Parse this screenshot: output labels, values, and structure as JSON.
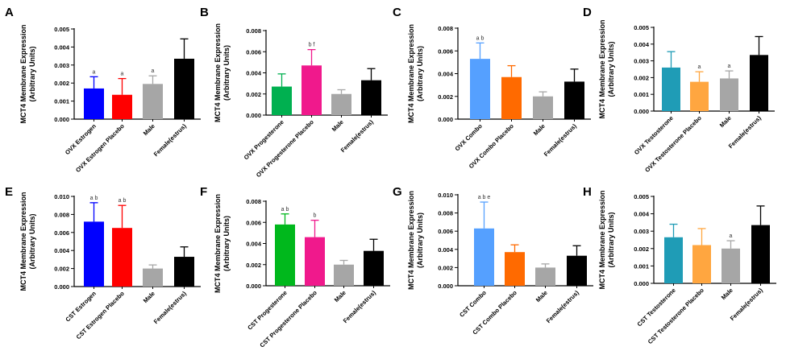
{
  "chart_data": [
    {
      "panel": "A",
      "type": "bar",
      "ylabel": [
        "MCT4 Membrane Expression",
        "(Arbitrary Units)"
      ],
      "ylim": [
        0,
        0.005
      ],
      "yticks": [
        "0.000",
        "0.001",
        "0.002",
        "0.003",
        "0.004",
        "0.005"
      ],
      "categories": [
        "OVX Estrogen",
        "OVX Estrogen Placebo",
        "Male",
        "Female(estrus)"
      ],
      "values": [
        0.0017,
        0.00135,
        0.00195,
        0.00335
      ],
      "errors": [
        0.00065,
        0.0009,
        0.00045,
        0.0011
      ],
      "annotations": [
        "a",
        "a",
        "a",
        ""
      ],
      "colors": [
        "#0000ff",
        "#ff0000",
        "#a6a6a6",
        "#000000"
      ]
    },
    {
      "panel": "B",
      "type": "bar",
      "ylabel": [
        "MCT4 Membrane Expression",
        "(Arbitrary Units)"
      ],
      "ylim": [
        0,
        0.008
      ],
      "yticks": [
        "0.000",
        "0.002",
        "0.004",
        "0.006",
        "0.008"
      ],
      "categories": [
        "OVX Progesterone",
        "OVX Progesterone Placebo",
        "Male",
        "Female(estrus)"
      ],
      "values": [
        0.0027,
        0.0047,
        0.002,
        0.0033
      ],
      "errors": [
        0.0012,
        0.0015,
        0.0004,
        0.0011
      ],
      "annotations": [
        "",
        "b f",
        "",
        ""
      ],
      "colors": [
        "#00b050",
        "#f0198c",
        "#a6a6a6",
        "#000000"
      ]
    },
    {
      "panel": "C",
      "type": "bar",
      "ylabel": [
        "MCT4 Membrane Expression",
        "(Arbitrary Units)"
      ],
      "ylim": [
        0,
        0.008
      ],
      "yticks": [
        "0.000",
        "0.002",
        "0.004",
        "0.006",
        "0.008"
      ],
      "categories": [
        "OVX Combo",
        "OVX Combo Placebo",
        "Male",
        "Female(estrus)"
      ],
      "values": [
        0.0053,
        0.0037,
        0.002,
        0.0033
      ],
      "errors": [
        0.0014,
        0.001,
        0.0004,
        0.0011
      ],
      "annotations": [
        "a b",
        "",
        "",
        ""
      ],
      "colors": [
        "#55a0ff",
        "#ff6a00",
        "#a6a6a6",
        "#000000"
      ]
    },
    {
      "panel": "D",
      "type": "bar",
      "ylabel": [
        "MCT4 Membrane Expression",
        "(Arbitrary Units)"
      ],
      "ylim": [
        0,
        0.005
      ],
      "yticks": [
        "0.000",
        "0.001",
        "0.002",
        "0.003",
        "0.004",
        "0.005"
      ],
      "categories": [
        "OVX Testosterone",
        "OVX Testosterone Placebo",
        "Male",
        "Female(estrus)"
      ],
      "values": [
        0.0026,
        0.00175,
        0.00195,
        0.00335
      ],
      "errors": [
        0.00095,
        0.0006,
        0.00045,
        0.0011
      ],
      "annotations": [
        "",
        "a",
        "a",
        ""
      ],
      "colors": [
        "#1f9cb6",
        "#ffa640",
        "#a6a6a6",
        "#000000"
      ]
    },
    {
      "panel": "E",
      "type": "bar",
      "ylabel": [
        "MCT4 Membrane Expression",
        "(Arbitrary Units)"
      ],
      "ylim": [
        0,
        0.01
      ],
      "yticks": [
        "0.000",
        "0.002",
        "0.004",
        "0.006",
        "0.008",
        "0.010"
      ],
      "categories": [
        "CST Estrogen",
        "CST Estrogen Placebo",
        "Male",
        "Female(estrus)"
      ],
      "values": [
        0.0072,
        0.0065,
        0.002,
        0.0033
      ],
      "errors": [
        0.0021,
        0.0025,
        0.0004,
        0.0011
      ],
      "annotations": [
        "a b",
        "a b",
        "",
        ""
      ],
      "colors": [
        "#0000ff",
        "#ff0000",
        "#a6a6a6",
        "#000000"
      ]
    },
    {
      "panel": "F",
      "type": "bar",
      "ylabel": [
        "MCT4 Membrane Expression",
        "(Arbitrary Units)"
      ],
      "ylim": [
        0,
        0.008
      ],
      "yticks": [
        "0.000",
        "0.002",
        "0.004",
        "0.006",
        "0.008"
      ],
      "categories": [
        "CST Progesterone",
        "CST Progesterone Placebo",
        "Male",
        "Female(estrus)"
      ],
      "values": [
        0.0058,
        0.0046,
        0.002,
        0.0033
      ],
      "errors": [
        0.001,
        0.0016,
        0.0004,
        0.0011
      ],
      "annotations": [
        "a b",
        "b",
        "",
        ""
      ],
      "colors": [
        "#00b81c",
        "#f0198c",
        "#a6a6a6",
        "#000000"
      ]
    },
    {
      "panel": "G",
      "type": "bar",
      "ylabel": [
        "MCT4 Membrane Expression",
        "(Arbitrary Units)"
      ],
      "ylim": [
        0,
        0.01
      ],
      "yticks": [
        "0.000",
        "0.002",
        "0.004",
        "0.006",
        "0.008",
        "0.010"
      ],
      "categories": [
        "CST Combo",
        "CST Combo Placebo",
        "Male",
        "Female(estrus)"
      ],
      "values": [
        0.0063,
        0.0037,
        0.002,
        0.0033
      ],
      "errors": [
        0.0029,
        0.0008,
        0.0004,
        0.0011
      ],
      "annotations": [
        "a b e",
        "",
        "",
        ""
      ],
      "colors": [
        "#55a0ff",
        "#ff6a00",
        "#a6a6a6",
        "#000000"
      ]
    },
    {
      "panel": "H",
      "type": "bar",
      "ylabel": [
        "MCT4 Membrane Expression",
        "(Arbitrary Units)"
      ],
      "ylim": [
        0,
        0.005
      ],
      "yticks": [
        "0.000",
        "0.001",
        "0.002",
        "0.003",
        "0.004",
        "0.005"
      ],
      "categories": [
        "CST Testosterone",
        "CST Testosterone Placebo",
        "Male",
        "Female(estrus)"
      ],
      "values": [
        0.00265,
        0.0022,
        0.002,
        0.00335
      ],
      "errors": [
        0.00075,
        0.00095,
        0.00045,
        0.0011
      ],
      "annotations": [
        "",
        "",
        "a",
        ""
      ],
      "colors": [
        "#1f9cb6",
        "#ffa640",
        "#a6a6a6",
        "#000000"
      ]
    }
  ]
}
